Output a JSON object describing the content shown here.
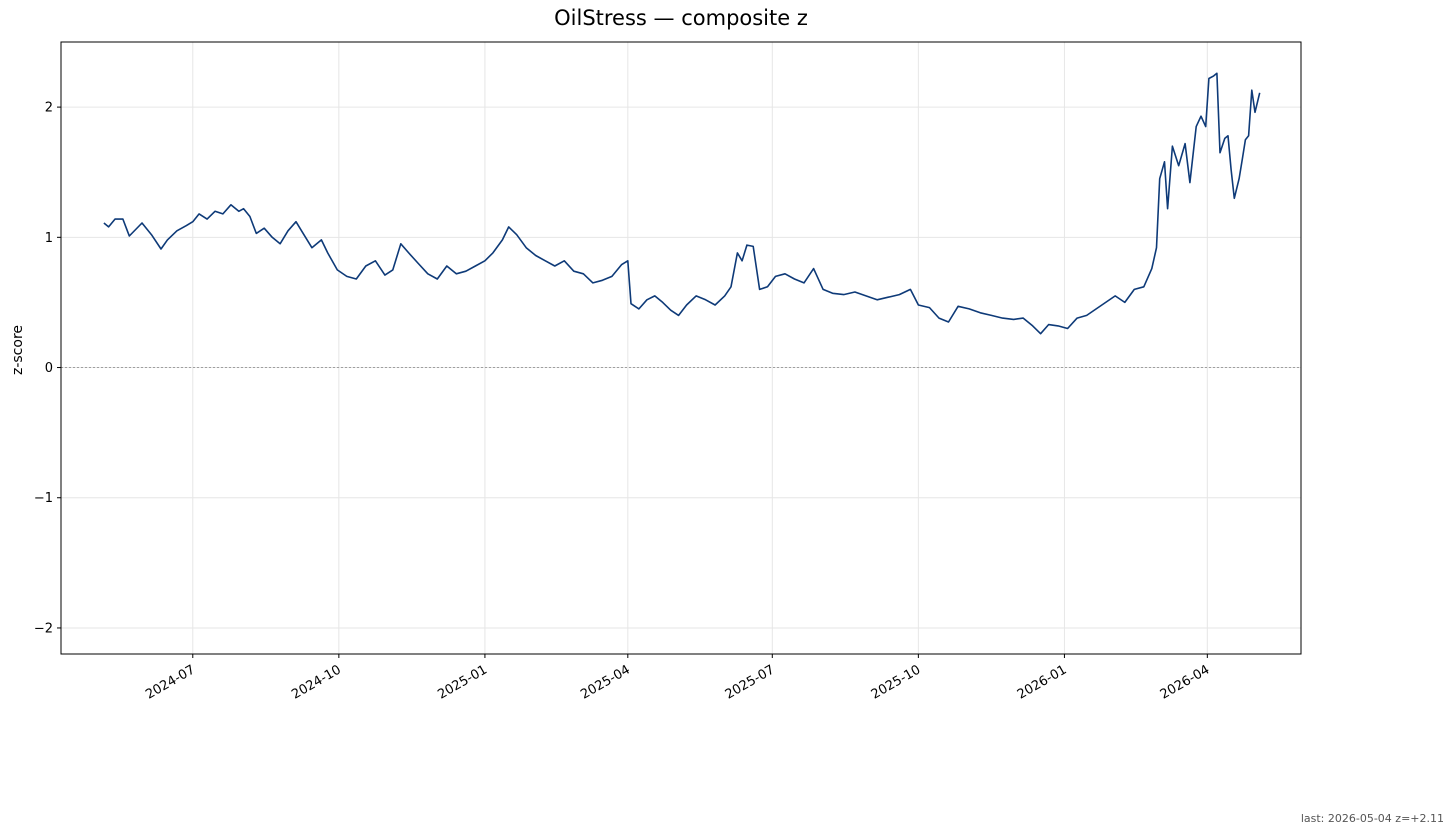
{
  "chart_data": {
    "type": "line",
    "title": "OilStress — composite z",
    "xlabel": "",
    "ylabel": "z-score",
    "ylim": [
      -2.2,
      2.5
    ],
    "xlim": [
      "2024-04-09",
      "2026-05-30"
    ],
    "yticks": [
      -2,
      -1,
      0,
      1,
      2
    ],
    "ytick_labels": [
      "−2",
      "−1",
      "0",
      "1",
      "2"
    ],
    "xticks": [
      "2024-07-01",
      "2024-10-01",
      "2025-01-01",
      "2025-04-01",
      "2025-07-01",
      "2025-10-01",
      "2026-01-01",
      "2026-04-01"
    ],
    "xtick_labels": [
      "2024-07",
      "2024-10",
      "2025-01",
      "2025-04",
      "2025-07",
      "2025-10",
      "2026-01",
      "2026-04"
    ],
    "grid": true,
    "reference_line": 0,
    "colors": {
      "series": "#0e3a78",
      "reference": "#888888",
      "grid": "#e6e6e6"
    },
    "series": [
      {
        "points": [
          [
            "2024-05-06",
            1.11
          ],
          [
            "2024-05-09",
            1.08
          ],
          [
            "2024-05-13",
            1.14
          ],
          [
            "2024-05-18",
            1.14
          ],
          [
            "2024-05-22",
            1.01
          ],
          [
            "2024-05-30",
            1.11
          ],
          [
            "2024-06-05",
            1.02
          ],
          [
            "2024-06-11",
            0.91
          ],
          [
            "2024-06-15",
            0.98
          ],
          [
            "2024-06-21",
            1.05
          ],
          [
            "2024-06-27",
            1.09
          ],
          [
            "2024-07-01",
            1.12
          ],
          [
            "2024-07-05",
            1.18
          ],
          [
            "2024-07-10",
            1.14
          ],
          [
            "2024-07-15",
            1.2
          ],
          [
            "2024-07-20",
            1.18
          ],
          [
            "2024-07-25",
            1.25
          ],
          [
            "2024-07-30",
            1.2
          ],
          [
            "2024-08-02",
            1.22
          ],
          [
            "2024-08-06",
            1.16
          ],
          [
            "2024-08-10",
            1.03
          ],
          [
            "2024-08-15",
            1.07
          ],
          [
            "2024-08-20",
            1.0
          ],
          [
            "2024-08-25",
            0.95
          ],
          [
            "2024-08-30",
            1.05
          ],
          [
            "2024-09-04",
            1.12
          ],
          [
            "2024-09-08",
            1.04
          ],
          [
            "2024-09-14",
            0.92
          ],
          [
            "2024-09-20",
            0.98
          ],
          [
            "2024-09-24",
            0.88
          ],
          [
            "2024-09-30",
            0.75
          ],
          [
            "2024-10-06",
            0.7
          ],
          [
            "2024-10-12",
            0.68
          ],
          [
            "2024-10-18",
            0.78
          ],
          [
            "2024-10-24",
            0.82
          ],
          [
            "2024-10-30",
            0.71
          ],
          [
            "2024-11-04",
            0.75
          ],
          [
            "2024-11-09",
            0.95
          ],
          [
            "2024-11-14",
            0.88
          ],
          [
            "2024-11-20",
            0.8
          ],
          [
            "2024-11-26",
            0.72
          ],
          [
            "2024-12-02",
            0.68
          ],
          [
            "2024-12-08",
            0.78
          ],
          [
            "2024-12-14",
            0.72
          ],
          [
            "2024-12-20",
            0.74
          ],
          [
            "2024-12-26",
            0.78
          ],
          [
            "2025-01-01",
            0.82
          ],
          [
            "2025-01-06",
            0.88
          ],
          [
            "2025-01-12",
            0.98
          ],
          [
            "2025-01-16",
            1.08
          ],
          [
            "2025-01-21",
            1.02
          ],
          [
            "2025-01-27",
            0.92
          ],
          [
            "2025-02-02",
            0.86
          ],
          [
            "2025-02-08",
            0.82
          ],
          [
            "2025-02-14",
            0.78
          ],
          [
            "2025-02-20",
            0.82
          ],
          [
            "2025-02-26",
            0.74
          ],
          [
            "2025-03-04",
            0.72
          ],
          [
            "2025-03-10",
            0.65
          ],
          [
            "2025-03-16",
            0.67
          ],
          [
            "2025-03-22",
            0.7
          ],
          [
            "2025-03-28",
            0.79
          ],
          [
            "2025-04-01",
            0.82
          ],
          [
            "2025-04-03",
            0.49
          ],
          [
            "2025-04-08",
            0.45
          ],
          [
            "2025-04-13",
            0.52
          ],
          [
            "2025-04-18",
            0.55
          ],
          [
            "2025-04-23",
            0.5
          ],
          [
            "2025-04-28",
            0.44
          ],
          [
            "2025-05-03",
            0.4
          ],
          [
            "2025-05-08",
            0.48
          ],
          [
            "2025-05-14",
            0.55
          ],
          [
            "2025-05-20",
            0.52
          ],
          [
            "2025-05-26",
            0.48
          ],
          [
            "2025-06-01",
            0.55
          ],
          [
            "2025-06-05",
            0.62
          ],
          [
            "2025-06-09",
            0.88
          ],
          [
            "2025-06-12",
            0.82
          ],
          [
            "2025-06-15",
            0.94
          ],
          [
            "2025-06-19",
            0.93
          ],
          [
            "2025-06-23",
            0.6
          ],
          [
            "2025-06-28",
            0.62
          ],
          [
            "2025-07-03",
            0.7
          ],
          [
            "2025-07-09",
            0.72
          ],
          [
            "2025-07-15",
            0.68
          ],
          [
            "2025-07-21",
            0.65
          ],
          [
            "2025-07-27",
            0.76
          ],
          [
            "2025-08-02",
            0.6
          ],
          [
            "2025-08-08",
            0.57
          ],
          [
            "2025-08-15",
            0.56
          ],
          [
            "2025-08-22",
            0.58
          ],
          [
            "2025-08-29",
            0.55
          ],
          [
            "2025-09-05",
            0.52
          ],
          [
            "2025-09-12",
            0.54
          ],
          [
            "2025-09-19",
            0.56
          ],
          [
            "2025-09-26",
            0.6
          ],
          [
            "2025-10-01",
            0.48
          ],
          [
            "2025-10-08",
            0.46
          ],
          [
            "2025-10-14",
            0.38
          ],
          [
            "2025-10-20",
            0.35
          ],
          [
            "2025-10-26",
            0.47
          ],
          [
            "2025-11-02",
            0.45
          ],
          [
            "2025-11-09",
            0.42
          ],
          [
            "2025-11-16",
            0.4
          ],
          [
            "2025-11-23",
            0.38
          ],
          [
            "2025-11-30",
            0.37
          ],
          [
            "2025-12-06",
            0.38
          ],
          [
            "2025-12-12",
            0.32
          ],
          [
            "2025-12-17",
            0.26
          ],
          [
            "2025-12-22",
            0.33
          ],
          [
            "2025-12-28",
            0.32
          ],
          [
            "2026-01-03",
            0.3
          ],
          [
            "2026-01-09",
            0.38
          ],
          [
            "2026-01-15",
            0.4
          ],
          [
            "2026-01-21",
            0.45
          ],
          [
            "2026-01-27",
            0.5
          ],
          [
            "2026-02-02",
            0.55
          ],
          [
            "2026-02-08",
            0.5
          ],
          [
            "2026-02-14",
            0.6
          ],
          [
            "2026-02-20",
            0.62
          ],
          [
            "2026-02-25",
            0.76
          ],
          [
            "2026-02-28",
            0.92
          ],
          [
            "2026-03-02",
            1.45
          ],
          [
            "2026-03-05",
            1.58
          ],
          [
            "2026-03-07",
            1.22
          ],
          [
            "2026-03-10",
            1.7
          ],
          [
            "2026-03-14",
            1.55
          ],
          [
            "2026-03-18",
            1.72
          ],
          [
            "2026-03-21",
            1.42
          ],
          [
            "2026-03-25",
            1.85
          ],
          [
            "2026-03-28",
            1.93
          ],
          [
            "2026-03-31",
            1.85
          ],
          [
            "2026-04-02",
            2.22
          ],
          [
            "2026-04-05",
            2.24
          ],
          [
            "2026-04-07",
            2.26
          ],
          [
            "2026-04-09",
            1.65
          ],
          [
            "2026-04-12",
            1.76
          ],
          [
            "2026-04-14",
            1.78
          ],
          [
            "2026-04-16",
            1.52
          ],
          [
            "2026-04-18",
            1.3
          ],
          [
            "2026-04-21",
            1.45
          ],
          [
            "2026-04-23",
            1.6
          ],
          [
            "2026-04-25",
            1.75
          ],
          [
            "2026-04-27",
            1.78
          ],
          [
            "2026-04-29",
            2.13
          ],
          [
            "2026-05-01",
            1.96
          ],
          [
            "2026-05-04",
            2.11
          ]
        ]
      }
    ]
  },
  "footer": {
    "text": "last: 2026-05-04 z=+2.11"
  }
}
